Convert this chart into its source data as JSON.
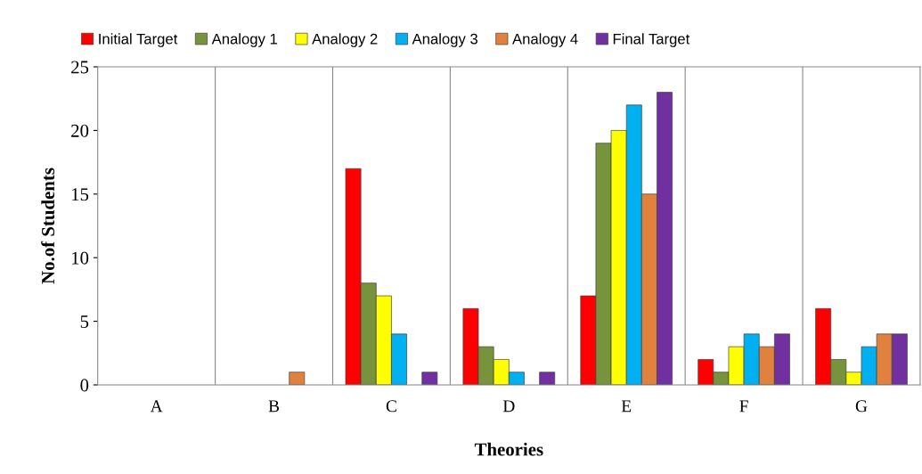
{
  "chart_data": {
    "type": "bar",
    "xlabel": "Theories",
    "ylabel": "No.of Students",
    "categories": [
      "A",
      "B",
      "C",
      "D",
      "E",
      "F",
      "G"
    ],
    "series": [
      {
        "name": "Initial Target",
        "color": "#ff0000",
        "values": [
          0,
          0,
          17,
          6,
          7,
          2,
          6
        ]
      },
      {
        "name": "Analogy 1",
        "color": "#77933c",
        "values": [
          0,
          0,
          8,
          3,
          19,
          1,
          2
        ]
      },
      {
        "name": "Analogy 2",
        "color": "#ffff00",
        "values": [
          0,
          0,
          7,
          2,
          20,
          3,
          1
        ]
      },
      {
        "name": "Analogy 3",
        "color": "#00b0f0",
        "values": [
          0,
          0,
          4,
          1,
          22,
          4,
          3
        ]
      },
      {
        "name": "Analogy 4",
        "color": "#e0823d",
        "values": [
          0,
          1,
          0,
          0,
          15,
          3,
          4
        ]
      },
      {
        "name": "Final Target",
        "color": "#7030a0",
        "values": [
          0,
          0,
          1,
          1,
          23,
          4,
          4
        ]
      }
    ],
    "ylim": [
      0,
      25
    ],
    "yticks": [
      0,
      5,
      10,
      15,
      20,
      25
    ],
    "grid": "x",
    "legend": "top"
  }
}
